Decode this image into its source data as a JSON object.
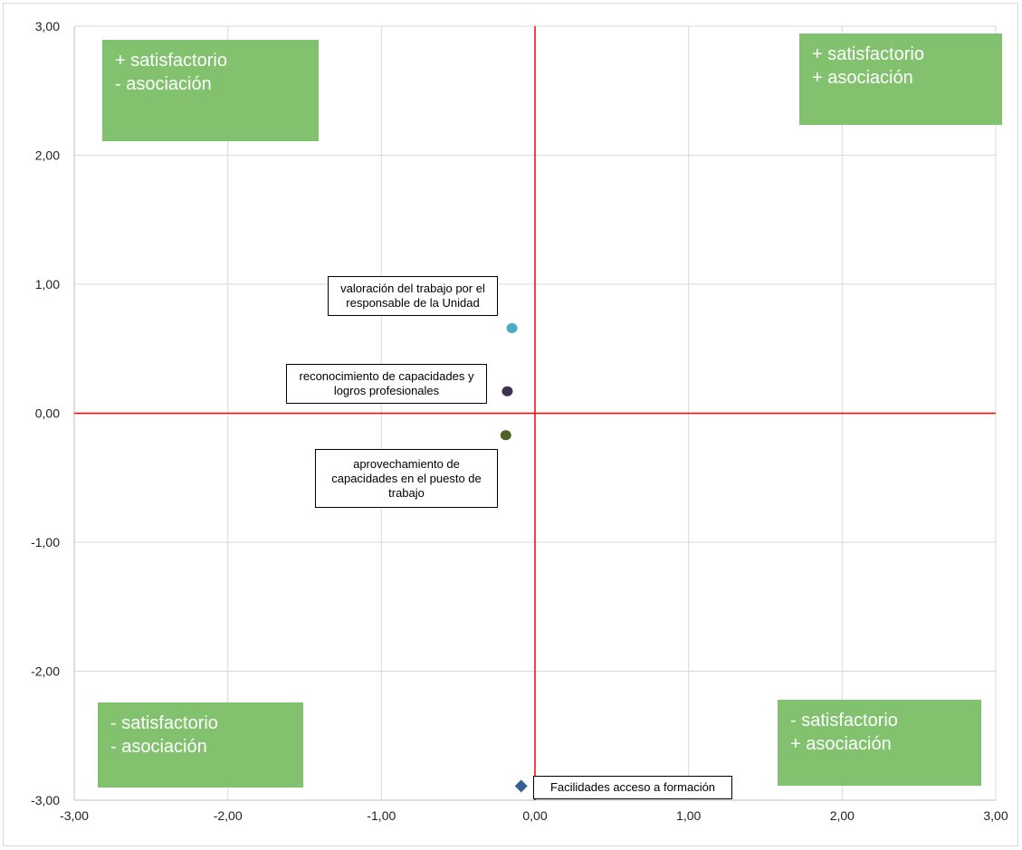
{
  "chart_data": {
    "type": "scatter",
    "title": "",
    "xlabel": "",
    "ylabel": "",
    "xlim": [
      -3,
      3
    ],
    "ylim": [
      -3,
      3
    ],
    "x_ticks": [
      "-3,00",
      "-2,00",
      "-1,00",
      "0,00",
      "1,00",
      "2,00",
      "3,00"
    ],
    "y_ticks": [
      "3,00",
      "2,00",
      "1,00",
      "0,00",
      "-1,00",
      "-2,00",
      "-3,00"
    ],
    "grid": true,
    "reference_lines": {
      "x": 0,
      "y": 0,
      "color": "#ff0000"
    },
    "points": [
      {
        "label": "valoración del trabajo por el responsable de la Unidad",
        "x": -0.15,
        "y": 0.66,
        "marker": "circle",
        "color": "#4bacc6"
      },
      {
        "label": "reconocimiento de capacidades y logros profesionales",
        "x": -0.18,
        "y": 0.17,
        "marker": "circle",
        "color": "#3f3151"
      },
      {
        "label": "aprovechamiento de capacidades en el puesto de trabajo",
        "x": -0.19,
        "y": -0.17,
        "marker": "circle",
        "color": "#4f6228"
      },
      {
        "label": "Facilidades acceso a formación",
        "x": -0.09,
        "y": -2.89,
        "marker": "diamond",
        "color": "#376092"
      }
    ],
    "quadrant_labels": {
      "top_left": [
        "+ satisfactorio",
        "- asociación"
      ],
      "top_right": [
        "+ satisfactorio",
        "+ asociación"
      ],
      "bottom_left": [
        "- satisfactorio",
        "- asociación"
      ],
      "bottom_right": [
        "- satisfactorio",
        "+ asociación"
      ],
      "color": "#82c26e"
    }
  }
}
